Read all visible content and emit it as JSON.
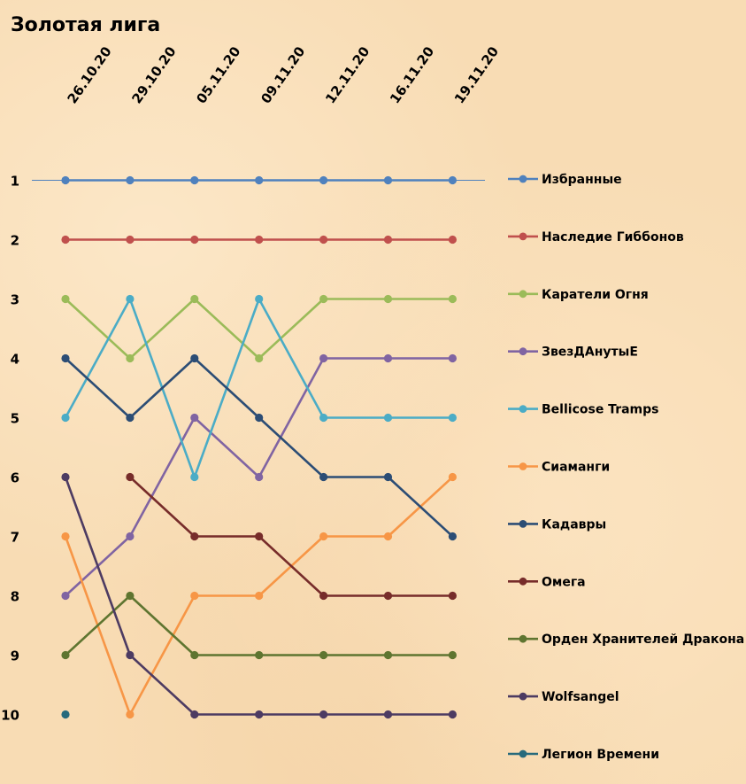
{
  "chart_data": {
    "type": "line",
    "title": "Золотая лига",
    "x": [
      "26.10.20",
      "29.10.20",
      "05.11.20",
      "09.11.20",
      "12.11.20",
      "16.11.20",
      "19.11.20"
    ],
    "y_ticks": [
      "1",
      "2",
      "3",
      "4",
      "5",
      "6",
      "7",
      "8",
      "9",
      "10"
    ],
    "ylim": [
      1,
      10
    ],
    "y_inverted": true,
    "legend_position": "right",
    "grid": false,
    "series": [
      {
        "name": "Избранные",
        "color": "#4f81bd",
        "values": [
          1,
          1,
          1,
          1,
          1,
          1,
          1
        ]
      },
      {
        "name": "Наследие Гиббонов",
        "color": "#c0504d",
        "values": [
          2,
          2,
          2,
          2,
          2,
          2,
          2
        ]
      },
      {
        "name": "Каратели Огня",
        "color": "#9bbb59",
        "values": [
          3,
          4,
          3,
          4,
          3,
          3,
          3
        ]
      },
      {
        "name": "ЗвезДАнутыЕ",
        "color": "#8064a2",
        "values": [
          8,
          7,
          5,
          6,
          4,
          4,
          4
        ]
      },
      {
        "name": "Bellicose Tramps",
        "color": "#4bacc6",
        "values": [
          5,
          3,
          6,
          3,
          5,
          5,
          5
        ]
      },
      {
        "name": "Сиаманги",
        "color": "#f79646",
        "values": [
          7,
          10,
          8,
          8,
          7,
          7,
          6
        ]
      },
      {
        "name": "Кадавры",
        "color": "#2c4d75",
        "values": [
          4,
          5,
          4,
          5,
          6,
          6,
          7
        ]
      },
      {
        "name": "Омега",
        "color": "#772c2a",
        "values": [
          null,
          6,
          7,
          7,
          8,
          8,
          8
        ]
      },
      {
        "name": "Орден Хранителей Дракона",
        "color": "#5f7530",
        "values": [
          9,
          8,
          9,
          9,
          9,
          9,
          9
        ]
      },
      {
        "name": "Wolfsangel",
        "color": "#4d3b62",
        "values": [
          6,
          9,
          10,
          10,
          10,
          10,
          10
        ]
      },
      {
        "name": "Легион Времени",
        "color": "#276a7c",
        "values": [
          10,
          null,
          null,
          null,
          null,
          null,
          null
        ]
      }
    ]
  }
}
